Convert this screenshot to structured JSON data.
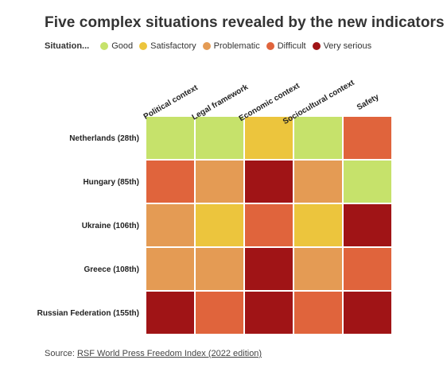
{
  "title": "Five complex situations revealed by the new indicators",
  "legend": {
    "label": "Situation...",
    "items": [
      {
        "name": "Good",
        "color": "#c6e26b"
      },
      {
        "name": "Satisfactory",
        "color": "#ecc53d"
      },
      {
        "name": "Problematic",
        "color": "#e49b54"
      },
      {
        "name": "Difficult",
        "color": "#e0643c"
      },
      {
        "name": "Very serious",
        "color": "#a01416"
      }
    ]
  },
  "source": {
    "prefix": "Source: ",
    "link_text": "RSF World Press Freedom Index (2022 edition)"
  },
  "chart_data": {
    "type": "heatmap",
    "columns": [
      "Political context",
      "Legal framework",
      "Economic context",
      "Sociocultural context",
      "Safety"
    ],
    "rows": [
      "Netherlands (28th)",
      "Hungary (85th)",
      "Ukraine (106th)",
      "Greece (108th)",
      "Russian Federation (155th)"
    ],
    "values": [
      [
        "Good",
        "Good",
        "Satisfactory",
        "Good",
        "Difficult"
      ],
      [
        "Difficult",
        "Problematic",
        "Very serious",
        "Problematic",
        "Good"
      ],
      [
        "Problematic",
        "Satisfactory",
        "Difficult",
        "Satisfactory",
        "Very serious"
      ],
      [
        "Problematic",
        "Problematic",
        "Very serious",
        "Problematic",
        "Difficult"
      ],
      [
        "Very serious",
        "Difficult",
        "Very serious",
        "Difficult",
        "Very serious"
      ]
    ]
  }
}
